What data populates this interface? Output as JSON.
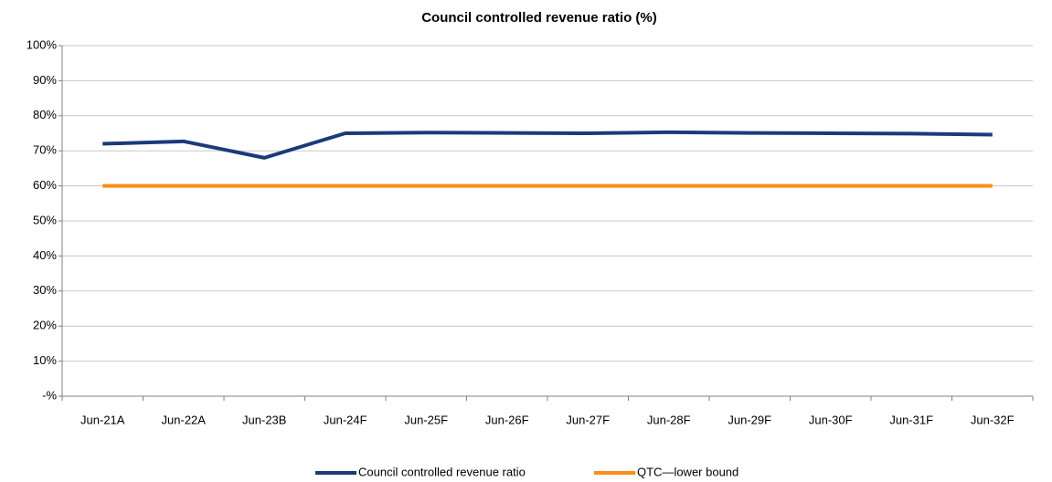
{
  "chart_data": {
    "type": "line",
    "title": "Council controlled revenue ratio (%)",
    "categories": [
      "Jun-21A",
      "Jun-22A",
      "Jun-23B",
      "Jun-24F",
      "Jun-25F",
      "Jun-26F",
      "Jun-27F",
      "Jun-28F",
      "Jun-29F",
      "Jun-30F",
      "Jun-31F",
      "Jun-32F"
    ],
    "series": [
      {
        "name": "Council controlled revenue ratio",
        "color": "#1b3a7a",
        "values": [
          72,
          72.7,
          68,
          75,
          75.2,
          75.1,
          75,
          75.3,
          75.1,
          75,
          74.9,
          74.6
        ]
      },
      {
        "name": "QTC—lower bound",
        "color": "#ff8c1a",
        "values": [
          60,
          60,
          60,
          60,
          60,
          60,
          60,
          60,
          60,
          60,
          60,
          60
        ]
      }
    ],
    "ylim": [
      0,
      100
    ],
    "yticks": [
      {
        "value": 0,
        "label": "-%"
      },
      {
        "value": 10,
        "label": "10%"
      },
      {
        "value": 20,
        "label": "20%"
      },
      {
        "value": 30,
        "label": "30%"
      },
      {
        "value": 40,
        "label": "40%"
      },
      {
        "value": 50,
        "label": "50%"
      },
      {
        "value": 60,
        "label": "60%"
      },
      {
        "value": 70,
        "label": "70%"
      },
      {
        "value": 80,
        "label": "80%"
      },
      {
        "value": 90,
        "label": "90%"
      },
      {
        "value": 100,
        "label": "100%"
      }
    ],
    "grid": true,
    "legend": "bottom"
  }
}
